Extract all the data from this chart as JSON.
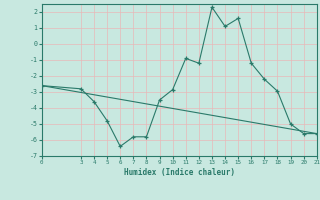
{
  "xlabel": "Humidex (Indice chaleur)",
  "background_color": "#c8e8e0",
  "grid_color": "#e8b8b8",
  "line_color": "#2a7a6a",
  "xlim": [
    0,
    21
  ],
  "ylim": [
    -7,
    2.5
  ],
  "yticks": [
    -7,
    -6,
    -5,
    -4,
    -3,
    -2,
    -1,
    0,
    1,
    2
  ],
  "xticks": [
    0,
    3,
    4,
    5,
    6,
    7,
    8,
    9,
    10,
    11,
    12,
    13,
    14,
    15,
    16,
    17,
    18,
    19,
    20,
    21
  ],
  "line1_x": [
    0,
    3,
    4,
    5,
    6,
    7,
    8,
    9,
    10,
    11,
    12,
    13,
    14,
    15,
    16,
    17,
    18,
    19,
    20,
    21
  ],
  "line1_y": [
    -2.6,
    -2.8,
    -3.6,
    -4.8,
    -6.4,
    -5.8,
    -5.8,
    -3.5,
    -2.85,
    -0.9,
    -1.2,
    2.3,
    1.1,
    1.6,
    -1.2,
    -2.2,
    -2.95,
    -5.0,
    -5.6,
    -5.6
  ],
  "line2_x": [
    0,
    21
  ],
  "line2_y": [
    -2.6,
    -5.6
  ]
}
